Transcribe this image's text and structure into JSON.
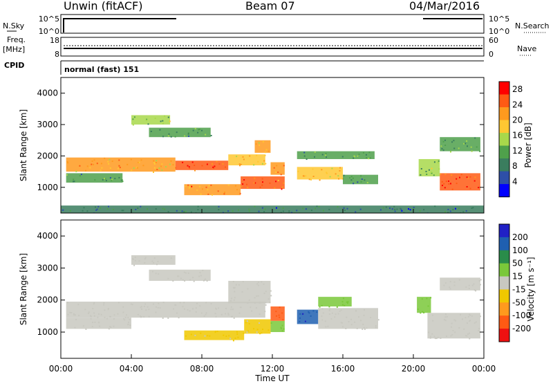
{
  "header": {
    "radar": "Unwin (fitACF)",
    "beam": "Beam 07",
    "date": "04/Mar/2016"
  },
  "summary_panels": {
    "nsky": {
      "label": "N.Sky",
      "ticks": [
        "10^5",
        "10^0"
      ]
    },
    "nsearch": {
      "label": "N.Search",
      "ticks": [
        "10^5",
        "10^0"
      ]
    },
    "freq": {
      "label_line1": "Freq.",
      "label_line2": "[MHz]",
      "ticks": [
        "18",
        "8"
      ]
    },
    "nave": {
      "label": "Nave",
      "ticks": [
        "60",
        "0"
      ]
    },
    "cpid": {
      "label": "CPID",
      "value": "normal (fast) 151"
    }
  },
  "colors": {
    "power_scale": [
      "#0000ff",
      "#2e4fa8",
      "#3a7d5e",
      "#4fa04b",
      "#a8d84b",
      "#ffc832",
      "#ff9a1e",
      "#ff5a14",
      "#ff0000"
    ],
    "velocity_scale": [
      "#2121c6",
      "#1f5fb0",
      "#2a8c4a",
      "#7ac83a",
      "#c8c8c0",
      "#f0c800",
      "#ff9a1e",
      "#ff5a14",
      "#ee1111"
    ],
    "ground_scatter": "#c8c8c0"
  },
  "chart_data": [
    {
      "type": "heatmap",
      "name": "Power",
      "ylabel": "Slant Range [km]",
      "xlabel": "Time UT",
      "xlim": [
        0,
        24
      ],
      "ylim": [
        180,
        4500
      ],
      "xticks": [
        "00:00",
        "04:00",
        "08:00",
        "12:00",
        "16:00",
        "20:00",
        "00:00"
      ],
      "yticks": [
        "1000",
        "2000",
        "3000",
        "4000"
      ],
      "colorbar": {
        "label": "Power [dB]",
        "ticks": [
          "4",
          "8",
          "12",
          "16",
          "20",
          "24",
          "28"
        ],
        "range": [
          0,
          30
        ]
      },
      "regions": [
        {
          "t0": 0.3,
          "t1": 6.5,
          "r0": 1500,
          "r1": 1950,
          "value": 20
        },
        {
          "t0": 6.5,
          "t1": 9.5,
          "r0": 1550,
          "r1": 1850,
          "value": 26
        },
        {
          "t0": 9.5,
          "t1": 11.6,
          "r0": 1700,
          "r1": 2050,
          "value": 18
        },
        {
          "t0": 11.0,
          "t1": 11.9,
          "r0": 2100,
          "r1": 2500,
          "value": 20
        },
        {
          "t0": 0.3,
          "t1": 3.5,
          "r0": 1150,
          "r1": 1450,
          "value": 10
        },
        {
          "t0": 7.0,
          "t1": 10.2,
          "r0": 750,
          "r1": 1100,
          "value": 22
        },
        {
          "t0": 10.2,
          "t1": 12.7,
          "r0": 950,
          "r1": 1350,
          "value": 24
        },
        {
          "t0": 11.9,
          "t1": 12.7,
          "r0": 1400,
          "r1": 1800,
          "value": 22
        },
        {
          "t0": 4.0,
          "t1": 6.2,
          "r0": 3000,
          "r1": 3300,
          "value": 14
        },
        {
          "t0": 5.0,
          "t1": 8.5,
          "r0": 2600,
          "r1": 2900,
          "value": 10
        },
        {
          "t0": 13.4,
          "t1": 16.0,
          "r0": 1250,
          "r1": 1650,
          "value": 18
        },
        {
          "t0": 13.4,
          "t1": 17.8,
          "r0": 1900,
          "r1": 2150,
          "value": 10
        },
        {
          "t0": 16.0,
          "t1": 18.0,
          "r0": 1100,
          "r1": 1400,
          "value": 10
        },
        {
          "t0": 20.3,
          "t1": 21.5,
          "r0": 1350,
          "r1": 1900,
          "value": 14
        },
        {
          "t0": 21.5,
          "t1": 23.8,
          "r0": 900,
          "r1": 1450,
          "value": 26
        },
        {
          "t0": 21.5,
          "t1": 23.8,
          "r0": 2150,
          "r1": 2600,
          "value": 12
        },
        {
          "t0": 0.0,
          "t1": 24.0,
          "r0": 180,
          "r1": 420,
          "value": 8
        }
      ]
    },
    {
      "type": "heatmap",
      "name": "Velocity",
      "ylabel": "Slant Range [km]",
      "xlabel": "Time UT",
      "xlim": [
        0,
        24
      ],
      "ylim": [
        180,
        4500
      ],
      "xticks": [
        "00:00",
        "04:00",
        "08:00",
        "12:00",
        "16:00",
        "20:00",
        "00:00"
      ],
      "yticks": [
        "1000",
        "2000",
        "3000",
        "4000"
      ],
      "colorbar": {
        "label": "Velocity [m s⁻¹]",
        "ticks": [
          "200",
          "100",
          "50",
          "15",
          "-15",
          "-50",
          "-100",
          "-200"
        ],
        "range": [
          -250,
          250
        ]
      },
      "regions": [
        {
          "t0": 0.3,
          "t1": 11.6,
          "r0": 1450,
          "r1": 1950,
          "value": 0
        },
        {
          "t0": 9.5,
          "t1": 11.9,
          "r0": 1900,
          "r1": 2600,
          "value": 0
        },
        {
          "t0": 0.3,
          "t1": 4.0,
          "r0": 1100,
          "r1": 1450,
          "value": 0
        },
        {
          "t0": 4.0,
          "t1": 6.5,
          "r0": 3100,
          "r1": 3400,
          "value": 0
        },
        {
          "t0": 5.0,
          "t1": 8.5,
          "r0": 2600,
          "r1": 2950,
          "value": 0
        },
        {
          "t0": 7.0,
          "t1": 10.4,
          "r0": 750,
          "r1": 1050,
          "value": -40
        },
        {
          "t0": 10.4,
          "t1": 11.9,
          "r0": 950,
          "r1": 1400,
          "value": -35
        },
        {
          "t0": 11.9,
          "t1": 12.7,
          "r0": 1000,
          "r1": 1350,
          "value": 60
        },
        {
          "t0": 11.9,
          "t1": 12.7,
          "r0": 1350,
          "r1": 1800,
          "value": -150
        },
        {
          "t0": 13.4,
          "t1": 14.6,
          "r0": 1250,
          "r1": 1700,
          "value": 180
        },
        {
          "t0": 14.6,
          "t1": 16.5,
          "r0": 1800,
          "r1": 2100,
          "value": 60
        },
        {
          "t0": 14.6,
          "t1": 18.0,
          "r0": 1100,
          "r1": 1750,
          "value": 0
        },
        {
          "t0": 20.2,
          "t1": 21.0,
          "r0": 1600,
          "r1": 2100,
          "value": 60
        },
        {
          "t0": 20.8,
          "t1": 23.8,
          "r0": 800,
          "r1": 1600,
          "value": 0
        },
        {
          "t0": 21.5,
          "t1": 23.8,
          "r0": 2300,
          "r1": 2700,
          "value": 0
        }
      ]
    }
  ]
}
